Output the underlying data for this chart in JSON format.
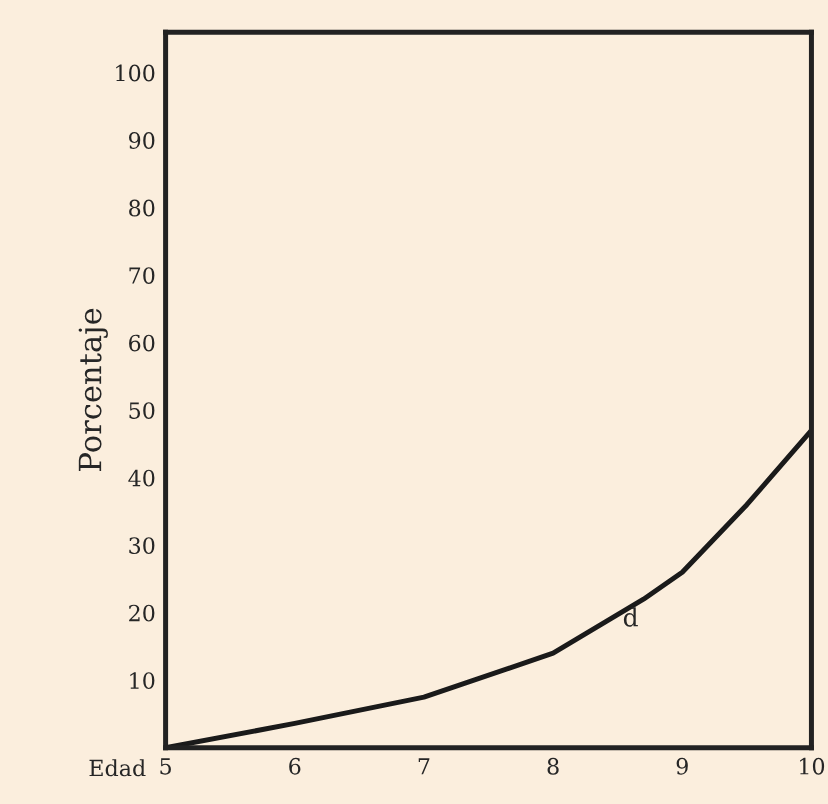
{
  "chart_data": {
    "type": "line",
    "xlabel": "Edad",
    "ylabel": "Porcentaje",
    "x": [
      5,
      6,
      7,
      8,
      8.7,
      9,
      9.5,
      10
    ],
    "series": [
      {
        "color": "#1a1a1a",
        "values": [
          0,
          3.6,
          7.5,
          14,
          22,
          26,
          36,
          47
        ]
      }
    ],
    "xlim": [
      5,
      10
    ],
    "xticks": [
      5,
      6,
      7,
      8,
      9,
      10
    ],
    "ylim": [
      0,
      106
    ],
    "yticks": [
      10,
      20,
      30,
      40,
      50,
      60,
      70,
      80,
      90,
      100
    ],
    "annotations": [
      {
        "text": "d",
        "x": 8.6,
        "y": 19
      }
    ],
    "grid": false,
    "marker": "none",
    "line_style": "solid"
  }
}
